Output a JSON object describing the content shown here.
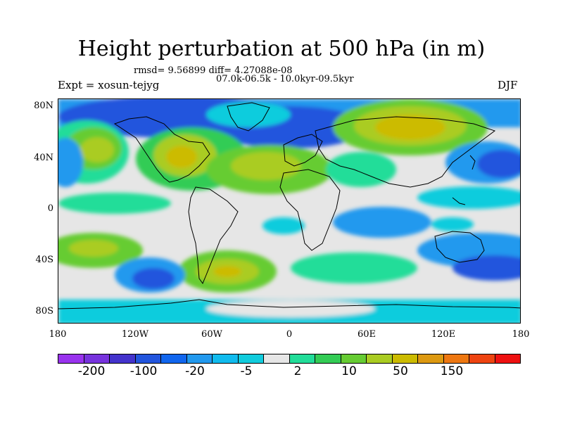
{
  "title": "Height perturbation at 500 hPa (in m)",
  "stats_line": "rmsd= 9.56899 diff= 4.27088e-08",
  "period": "07.0k-06.5k - 10.0kyr-09.5kyr",
  "experiment": "Expt = xosun-tejyg",
  "season": "DJF",
  "lat_labels": [
    "80N",
    "40N",
    "0",
    "40S",
    "80S"
  ],
  "lon_labels": [
    "180",
    "120W",
    "60W",
    "0",
    "60E",
    "120E",
    "180"
  ],
  "colorbar": {
    "colors": [
      "#9933ee",
      "#7733dd",
      "#4433cc",
      "#2255dd",
      "#1166ee",
      "#2299ee",
      "#11bbee",
      "#11ccdd",
      "#e6e6e6",
      "#22dd99",
      "#33cc55",
      "#66cc33",
      "#aacc22",
      "#ccbb00",
      "#dd9911",
      "#ee7711",
      "#ee4411",
      "#ee1111"
    ],
    "labels": [
      "-200",
      "-100",
      "-20",
      "-5",
      "2",
      "10",
      "50",
      "150"
    ]
  },
  "map_colors": {
    "background": "#e6e6e6",
    "deep_blue": "#2255dd",
    "blue": "#2299ee",
    "light_blue": "#11bbee",
    "cyan": "#11ccdd",
    "teal": "#22dd99",
    "green": "#33cc55",
    "lime": "#66cc33",
    "yellow_green": "#aacc22",
    "olive": "#ccbb00",
    "orange": "#dd9911"
  }
}
